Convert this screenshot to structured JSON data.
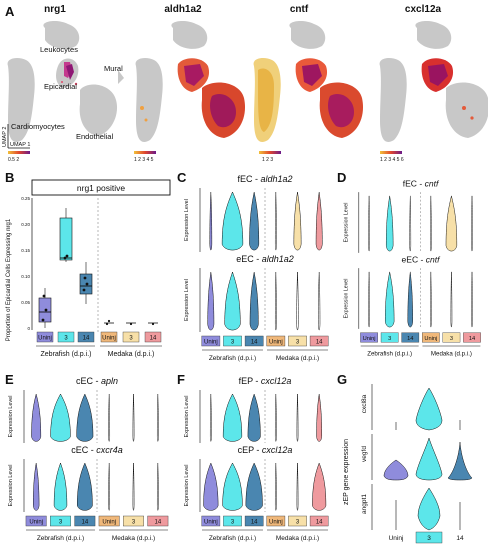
{
  "panel_letters": [
    "A",
    "B",
    "C",
    "D",
    "E",
    "F",
    "G"
  ],
  "panel_a": {
    "genes": [
      "nrg1",
      "aldh1a2",
      "cntf",
      "cxcl12a"
    ],
    "clusters": [
      "Leukocytes",
      "Mural",
      "Epicardial",
      "Cardiomyocytes",
      "Endothelial"
    ],
    "umap_y": "UMAP 2",
    "umap_x": "UMAP 1",
    "scales": [
      "0.5 2",
      "1 2 3 4 5",
      "1 2 3",
      "1 2 3 4 5 6"
    ]
  },
  "panel_b": {
    "title": "nrg1 positive",
    "ylabel": "Proportion of Epicardial Cells Expressing nrg1",
    "yticks": [
      "0",
      "0.05",
      "0.10",
      "0.15",
      "0.20",
      "0.25"
    ],
    "groups": [
      "Uninj",
      "3",
      "14",
      "Uninj",
      "3",
      "14"
    ],
    "species": [
      "Zebrafish (d.p.i.)",
      "Medaka (d.p.i.)"
    ]
  },
  "panel_c": {
    "top_prefix": "fEC - ",
    "top_gene": "aldh1a2",
    "bottom_prefix": "eEC - ",
    "bottom_gene": "aldh1a2",
    "ylabel": "Expression Level",
    "groups": [
      "Uninj",
      "3",
      "14",
      "Uninj",
      "3",
      "14"
    ],
    "species": [
      "Zebrafish (d.p.i.)",
      "Medaka (d.p.i.)"
    ]
  },
  "panel_d": {
    "top_prefix": "fEC - ",
    "top_gene": "cntf",
    "bottom_prefix": "eEC - ",
    "bottom_gene": "cntf",
    "ylabel": "Expression Level",
    "groups": [
      "Uninj",
      "3",
      "14",
      "Uninj",
      "3",
      "14"
    ],
    "species": [
      "Zebrafish (d.p.i.)",
      "Medaka (d.p.i.)"
    ]
  },
  "panel_e": {
    "top_prefix": "cEC - ",
    "top_gene": "apln",
    "bottom_prefix": "cEC - ",
    "bottom_gene": "cxcr4a",
    "ylabel": "Expression Level",
    "groups": [
      "Uninj",
      "3",
      "14",
      "Uninj",
      "3",
      "14"
    ],
    "species": [
      "Zebrafish (d.p.i.)",
      "Medaka (d.p.i.)"
    ]
  },
  "panel_f": {
    "top_prefix": "fEP - ",
    "top_gene": "cxcl12a",
    "bottom_prefix": "cEP - ",
    "bottom_gene": "cxcl12a",
    "ylabel": "Expression Level",
    "groups": [
      "Uninj",
      "3",
      "14",
      "Uninj",
      "3",
      "14"
    ],
    "species": [
      "Zebrafish (d.p.i.)",
      "Medaka (d.p.i.)"
    ]
  },
  "panel_g": {
    "ylabel": "zEP gene expression",
    "genes": [
      "cxcl8a",
      "vegfd",
      "angpt1"
    ],
    "groups": [
      "Uninj",
      "3",
      "14"
    ]
  },
  "colors": {
    "uninj": "#8f8cdc",
    "d3": "#5ce6ea",
    "d14": "#4a86b0",
    "m_uninj": "#f0b87a",
    "m_3": "#f7e0a8",
    "m_14": "#ef9a9e",
    "epicardial_hi": "#b0197a",
    "umap_grey": "#c8c8c8"
  }
}
